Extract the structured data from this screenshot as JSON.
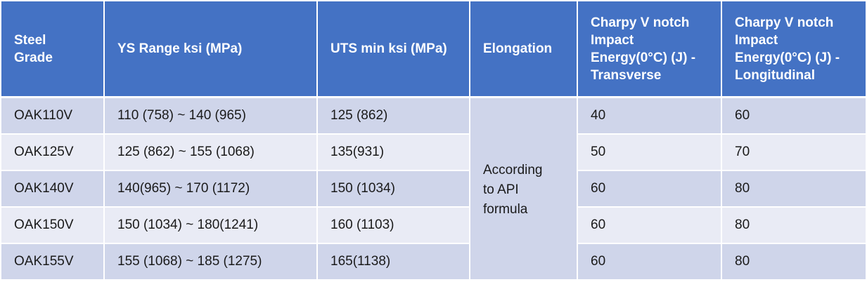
{
  "table": {
    "headers": [
      "Steel Grade",
      "YS Range ksi (MPa)",
      "UTS min ksi (MPa)",
      "Elongation",
      "Charpy V notch Impact Energy(0°C) (J) - Transverse",
      "Charpy V notch Impact Energy(0°C) (J) - Longitudinal"
    ],
    "rows": [
      {
        "grade": "OAK110V",
        "ys": "110 (758) ~ 140 (965)",
        "uts": "125 (862)",
        "transverse": "40",
        "longitudinal": "60"
      },
      {
        "grade": "OAK125V",
        "ys": "125 (862) ~ 155 (1068)",
        "uts": "135(931)",
        "transverse": "50",
        "longitudinal": "70"
      },
      {
        "grade": "OAK140V",
        "ys": "140(965) ~ 170 (1172)",
        "uts": "150 (1034)",
        "transverse": "60",
        "longitudinal": "80"
      },
      {
        "grade": "OAK150V",
        "ys": "150 (1034) ~ 180(1241)",
        "uts": "160 (1103)",
        "transverse": "60",
        "longitudinal": "80"
      },
      {
        "grade": "OAK155V",
        "ys": "155 (1068) ~ 185 (1275)",
        "uts": "165(1138)",
        "transverse": "60",
        "longitudinal": "80"
      }
    ],
    "elongation_merged": "According to API formula"
  },
  "colors": {
    "header_bg": "#4472c4",
    "row_dark": "#cfd5ea",
    "row_light": "#e9ebf5"
  }
}
